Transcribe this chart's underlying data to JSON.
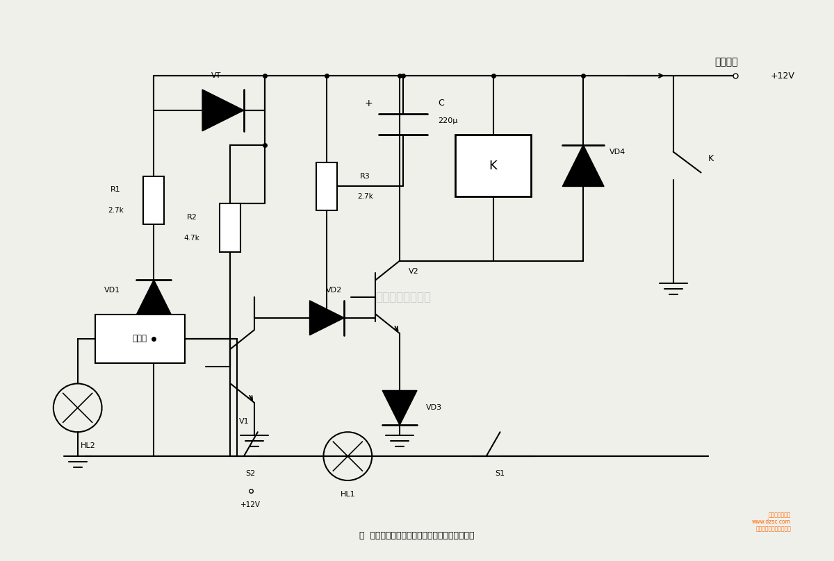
{
  "bg_color": "#f0f0eb",
  "line_color": "#000000",
  "caption": "图  集成电路构成的信号产生中的摩托车防盗器一",
  "watermark": "杭州将睿有限公司",
  "logo_text": "维库电子市场网\nwww.dzsc.com\n专业电子元器件交易商城",
  "logo_color": "#ff6600"
}
